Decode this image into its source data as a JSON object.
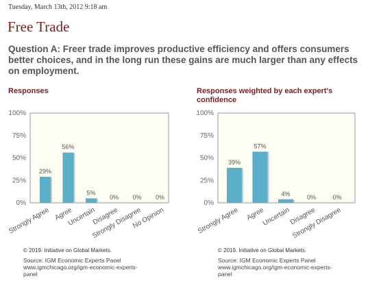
{
  "header": {
    "date": "Tuesday, March 13th, 2012 9:18 am",
    "title": "Free Trade",
    "question": "Question A: Freer trade improves productive efficiency and offers consumers better choices, and in the long run these gains are much larger than any effects on employment."
  },
  "colors": {
    "bar": "#5bafc9",
    "plot_bg": "#fdfdf3",
    "title": "#7a1f1f"
  },
  "chart_data": [
    {
      "type": "bar",
      "title": "Responses",
      "categories": [
        "Strongly Agree",
        "Agree",
        "Uncertain",
        "Disagree",
        "Strongly Disagree",
        "No Opinion"
      ],
      "values": [
        29,
        56,
        5,
        0,
        0,
        0
      ],
      "value_labels": [
        "29%",
        "56%",
        "5%",
        "0%",
        "0%",
        "0%"
      ],
      "yticks": [
        "0%",
        "25%",
        "50%",
        "75%",
        "100%"
      ],
      "ylim": [
        0,
        100
      ]
    },
    {
      "type": "bar",
      "title": "Responses weighted by each expert's confidence",
      "categories": [
        "Strongly Agree",
        "Agree",
        "Uncertain",
        "Disagree",
        "Strongly Disagree"
      ],
      "values": [
        39,
        57,
        4,
        0,
        0
      ],
      "value_labels": [
        "39%",
        "57%",
        "4%",
        "0%",
        "0%"
      ],
      "yticks": [
        "0%",
        "25%",
        "50%",
        "75%",
        "100%"
      ],
      "ylim": [
        0,
        100
      ]
    }
  ],
  "footer": {
    "copyright": "© 2019. Initiative on Global Markets.",
    "source_line1": "Source: IGM Economic Experts Panel",
    "source_line2": "www.igmchicago.org/igm-economic-experts-",
    "source_line3": "panel"
  }
}
